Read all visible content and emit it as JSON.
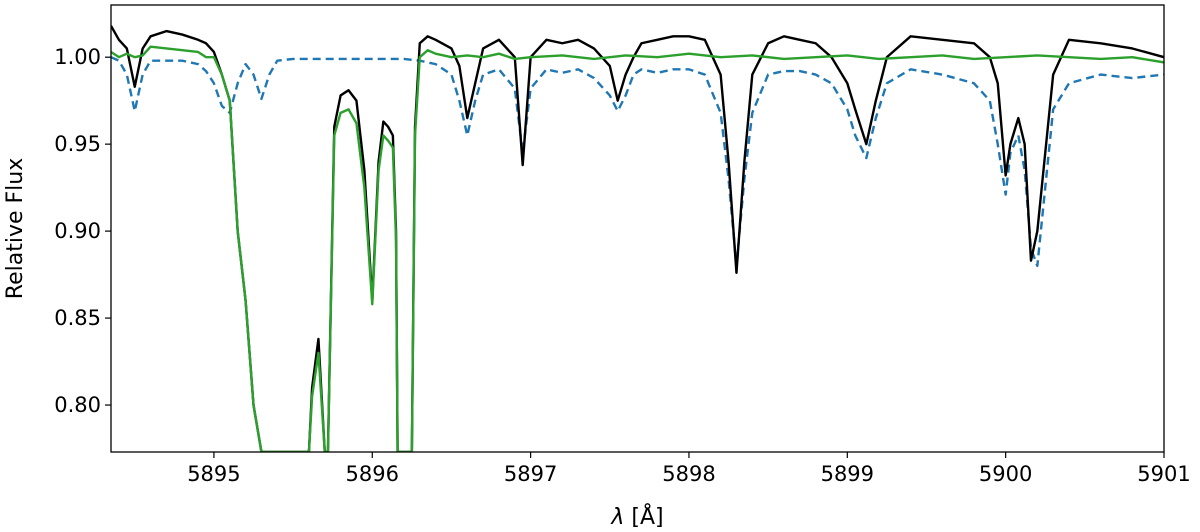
{
  "chart_data": {
    "type": "line",
    "title": "",
    "xlabel_symbol": "λ",
    "xlabel_unit": "[Å]",
    "ylabel": "Relative Flux",
    "xlim": [
      5894.35,
      5901.0
    ],
    "ylim": [
      0.773,
      1.03
    ],
    "grid": false,
    "legend": "none",
    "xticks": [
      5895,
      5896,
      5897,
      5898,
      5899,
      5900,
      5901
    ],
    "xtick_labels": [
      "5895",
      "5896",
      "5897",
      "5898",
      "5899",
      "5900",
      "5901"
    ],
    "yticks": [
      0.8,
      0.85,
      0.9,
      0.95,
      1.0
    ],
    "ytick_labels": [
      "0.80",
      "0.85",
      "0.90",
      "0.95",
      "1.00"
    ],
    "series": [
      {
        "color": "#1f77b4",
        "style": "dashed",
        "x": [
          5894.35,
          5894.4,
          5894.45,
          5894.5,
          5894.55,
          5894.6,
          5894.7,
          5894.8,
          5894.9,
          5894.95,
          5895.0,
          5895.05,
          5895.1,
          5895.15,
          5895.2,
          5895.25,
          5895.3,
          5895.35,
          5895.4,
          5895.5,
          5895.7,
          5896.0,
          5896.2,
          5896.3,
          5896.4,
          5896.5,
          5896.55,
          5896.6,
          5896.65,
          5896.7,
          5896.8,
          5896.9,
          5896.95,
          5897.0,
          5897.1,
          5897.2,
          5897.3,
          5897.4,
          5897.5,
          5897.55,
          5897.6,
          5897.65,
          5897.7,
          5897.8,
          5897.9,
          5898.0,
          5898.1,
          5898.2,
          5898.25,
          5898.3,
          5898.35,
          5898.4,
          5898.5,
          5898.6,
          5898.7,
          5898.8,
          5898.9,
          5899.0,
          5899.05,
          5899.12,
          5899.18,
          5899.25,
          5899.4,
          5899.6,
          5899.8,
          5899.9,
          5899.95,
          5900.0,
          5900.03,
          5900.08,
          5900.12,
          5900.16,
          5900.2,
          5900.3,
          5900.4,
          5900.6,
          5900.8,
          5901.0
        ],
        "values": [
          1.0,
          0.998,
          0.99,
          0.969,
          0.99,
          0.998,
          0.998,
          0.998,
          0.996,
          0.992,
          0.985,
          0.972,
          0.968,
          0.985,
          0.996,
          0.99,
          0.976,
          0.99,
          0.998,
          0.999,
          0.999,
          0.999,
          0.999,
          0.998,
          0.996,
          0.99,
          0.975,
          0.955,
          0.975,
          0.99,
          0.993,
          0.982,
          0.945,
          0.982,
          0.993,
          0.991,
          0.993,
          0.988,
          0.978,
          0.969,
          0.978,
          0.99,
          0.993,
          0.991,
          0.993,
          0.993,
          0.99,
          0.968,
          0.93,
          0.88,
          0.93,
          0.968,
          0.99,
          0.992,
          0.992,
          0.99,
          0.985,
          0.97,
          0.955,
          0.942,
          0.965,
          0.985,
          0.993,
          0.99,
          0.985,
          0.975,
          0.95,
          0.921,
          0.945,
          0.955,
          0.935,
          0.89,
          0.88,
          0.97,
          0.985,
          0.99,
          0.988,
          0.99
        ]
      },
      {
        "color": "#000000",
        "style": "solid",
        "x": [
          5894.35,
          5894.4,
          5894.45,
          5894.5,
          5894.55,
          5894.6,
          5894.7,
          5894.8,
          5894.9,
          5894.95,
          5895.0,
          5895.05,
          5895.1,
          5895.15,
          5895.2,
          5895.25,
          5895.3,
          5895.32,
          5895.6,
          5895.62,
          5895.66,
          5895.7,
          5895.72,
          5895.76,
          5895.8,
          5895.85,
          5895.9,
          5895.95,
          5896.0,
          5896.04,
          5896.07,
          5896.1,
          5896.13,
          5896.15,
          5896.16,
          5896.25,
          5896.27,
          5896.3,
          5896.35,
          5896.4,
          5896.5,
          5896.55,
          5896.6,
          5896.65,
          5896.7,
          5896.8,
          5896.9,
          5896.95,
          5897.0,
          5897.1,
          5897.2,
          5897.3,
          5897.4,
          5897.5,
          5897.55,
          5897.6,
          5897.65,
          5897.7,
          5897.8,
          5897.9,
          5898.0,
          5898.1,
          5898.2,
          5898.25,
          5898.3,
          5898.35,
          5898.4,
          5898.5,
          5898.6,
          5898.7,
          5898.8,
          5898.9,
          5899.0,
          5899.05,
          5899.12,
          5899.18,
          5899.25,
          5899.4,
          5899.6,
          5899.8,
          5899.9,
          5899.95,
          5900.0,
          5900.03,
          5900.08,
          5900.12,
          5900.16,
          5900.2,
          5900.3,
          5900.4,
          5900.6,
          5900.8,
          5901.0
        ],
        "values": [
          1.018,
          1.01,
          1.005,
          0.983,
          1.005,
          1.012,
          1.015,
          1.013,
          1.01,
          1.008,
          1.003,
          0.99,
          0.975,
          0.9,
          0.86,
          0.8,
          0.773,
          0.773,
          0.773,
          0.81,
          0.838,
          0.773,
          0.773,
          0.96,
          0.978,
          0.981,
          0.975,
          0.935,
          0.86,
          0.94,
          0.963,
          0.96,
          0.955,
          0.9,
          0.773,
          0.773,
          0.96,
          1.008,
          1.012,
          1.01,
          1.005,
          0.995,
          0.965,
          0.985,
          1.005,
          1.01,
          1.0,
          0.938,
          1.0,
          1.01,
          1.008,
          1.01,
          1.005,
          0.995,
          0.975,
          0.99,
          1.0,
          1.008,
          1.01,
          1.012,
          1.012,
          1.01,
          0.99,
          0.94,
          0.876,
          0.94,
          0.99,
          1.008,
          1.012,
          1.01,
          1.008,
          1.0,
          0.985,
          0.97,
          0.95,
          0.975,
          1.0,
          1.012,
          1.01,
          1.008,
          1.0,
          0.985,
          0.932,
          0.95,
          0.965,
          0.95,
          0.883,
          0.9,
          0.99,
          1.01,
          1.008,
          1.005,
          1.0
        ]
      },
      {
        "color": "#2ca02c",
        "style": "solid",
        "x": [
          5894.35,
          5894.4,
          5894.45,
          5894.5,
          5894.55,
          5894.6,
          5894.7,
          5894.8,
          5894.9,
          5894.95,
          5895.0,
          5895.05,
          5895.1,
          5895.15,
          5895.2,
          5895.25,
          5895.3,
          5895.32,
          5895.6,
          5895.62,
          5895.66,
          5895.7,
          5895.72,
          5895.76,
          5895.8,
          5895.85,
          5895.9,
          5895.95,
          5896.0,
          5896.04,
          5896.07,
          5896.1,
          5896.13,
          5896.15,
          5896.16,
          5896.25,
          5896.27,
          5896.3,
          5896.35,
          5896.4,
          5896.5,
          5896.6,
          5896.7,
          5896.8,
          5896.9,
          5897.0,
          5897.2,
          5897.4,
          5897.6,
          5897.8,
          5898.0,
          5898.2,
          5898.4,
          5898.6,
          5898.8,
          5899.0,
          5899.2,
          5899.4,
          5899.6,
          5899.8,
          5900.0,
          5900.2,
          5900.4,
          5900.6,
          5900.8,
          5901.0
        ],
        "values": [
          1.003,
          1.0,
          1.002,
          1.0,
          1.001,
          1.006,
          1.005,
          1.004,
          1.003,
          1.0,
          1.0,
          0.99,
          0.975,
          0.9,
          0.86,
          0.8,
          0.773,
          0.773,
          0.773,
          0.805,
          0.83,
          0.773,
          0.773,
          0.955,
          0.968,
          0.97,
          0.962,
          0.925,
          0.858,
          0.935,
          0.955,
          0.952,
          0.948,
          0.895,
          0.773,
          0.773,
          0.955,
          1.0,
          1.004,
          1.002,
          1.0,
          1.001,
          1.0,
          1.002,
          0.999,
          1.0,
          1.001,
          0.999,
          1.001,
          1.0,
          1.002,
          1.0,
          1.001,
          0.999,
          1.0,
          1.001,
          0.999,
          1.0,
          1.001,
          0.999,
          1.0,
          1.001,
          1.0,
          0.999,
          1.0,
          0.997
        ]
      }
    ]
  }
}
